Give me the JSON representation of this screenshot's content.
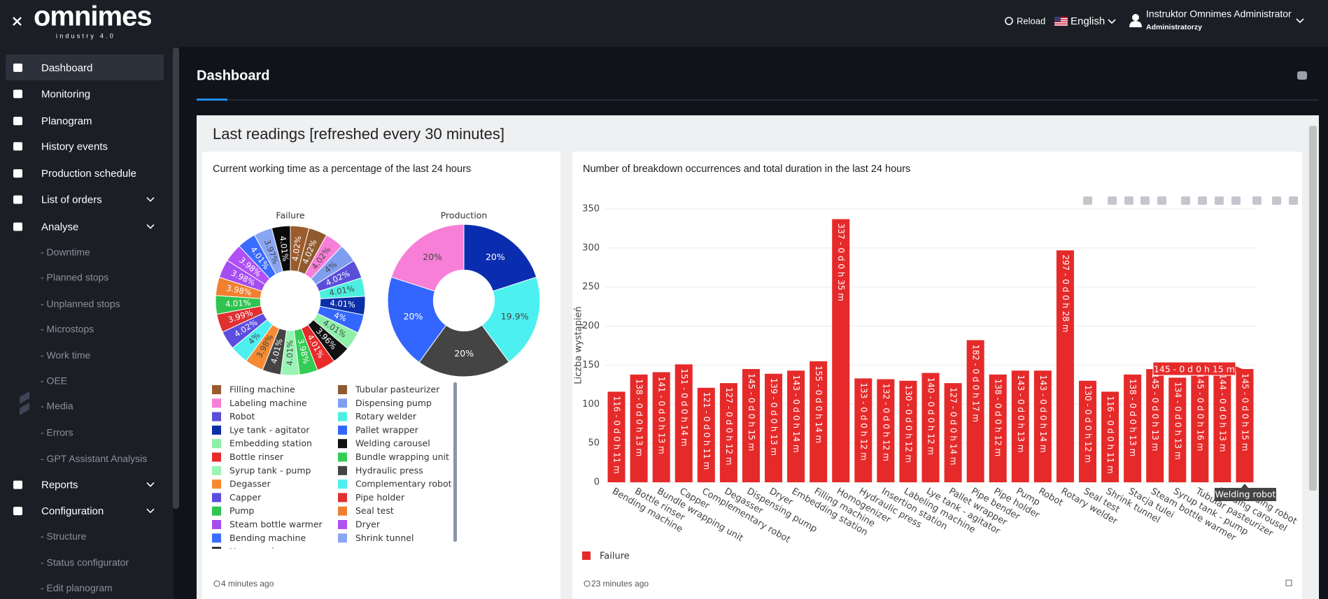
{
  "header": {
    "logo": "omnimes",
    "logo_tagline": "industry 4.0",
    "reload": "Reload",
    "language": "English",
    "user_name": "Instruktor Omnimes Administrator",
    "user_role": "Administratorzy"
  },
  "sidebar": [
    {
      "label": "Dashboard",
      "active": true
    },
    {
      "label": "Monitoring"
    },
    {
      "label": "Planogram"
    },
    {
      "label": "History events"
    },
    {
      "label": "Production schedule"
    },
    {
      "label": "List of orders",
      "expandable": true
    },
    {
      "label": "Analyse",
      "expandable": true
    },
    {
      "label": "- Downtime",
      "sub": true
    },
    {
      "label": "- Planned stops",
      "sub": true
    },
    {
      "label": "- Unplanned stops",
      "sub": true
    },
    {
      "label": "- Microstops",
      "sub": true
    },
    {
      "label": "- Work time",
      "sub": true
    },
    {
      "label": "- OEE",
      "sub": true
    },
    {
      "label": "- Media",
      "sub": true
    },
    {
      "label": "- Errors",
      "sub": true
    },
    {
      "label": "- GPT Assistant Analysis",
      "sub": true
    },
    {
      "label": "Reports",
      "expandable": true
    },
    {
      "label": "Configuration",
      "expandable": true
    },
    {
      "label": "- Structure",
      "sub": true
    },
    {
      "label": "- Status configurator",
      "sub": true
    },
    {
      "label": "- Edit planogram",
      "sub": true
    }
  ],
  "page_title": "Dashboard",
  "panel_title": "Last readings [refreshed every 30 minutes]",
  "cards": [
    {
      "title": "Current working time as a percentage of the last 24 hours",
      "footer": "4 minutes ago"
    },
    {
      "title": "Number of breakdown occurrences and total duration in the last 24 hours",
      "footer": "23 minutes ago"
    }
  ],
  "chart_data": [
    {
      "type": "pie",
      "title": "Failure",
      "labels": [
        "Filling machine",
        "Tubular pasteurizer",
        "Labeling machine",
        "Dispensing pump",
        "Robot",
        "Rotary welder",
        "Lye tank - agitator",
        "Pallet wrapper",
        "Embedding station",
        "Welding carousel",
        "Bottle rinser",
        "Bundle wrapping unit",
        "Syrup tank - pump",
        "Hydraulic press",
        "Degasser",
        "Complementary robot",
        "Capper",
        "Pipe holder",
        "Pump",
        "Seal test",
        "Steam bottle warmer",
        "Dryer",
        "Bending machine",
        "Shrink tunnel",
        "Homogenizer"
      ],
      "values": [
        4.02,
        4.02,
        4.02,
        4,
        4.02,
        4.01,
        4.01,
        4,
        4.01,
        3.96,
        4.01,
        3.98,
        4.01,
        4.01,
        3.98,
        4,
        4.02,
        3.99,
        4.01,
        3.98,
        3.98,
        3.98,
        4.01,
        3.97,
        4.01
      ],
      "value_labels": [
        "4.02%",
        "4.02%",
        "4.02%",
        "4%",
        "4.02%",
        "4.01%",
        "4.01%",
        "4%",
        "4.01%",
        "3.96%",
        "4.01%",
        "3.98%",
        "4.01%",
        "4.01%",
        "3.98%",
        "4%",
        "4.02%",
        "3.99%",
        "4.01%",
        "3.98%",
        "3.98%",
        "3.98%",
        "4.01%",
        "3.97%",
        "4.01%"
      ],
      "colors": [
        "#9c5b2c",
        "#8f5a2e",
        "#f77fd8",
        "#7f9ef0",
        "#5a4fd8",
        "#4df0e0",
        "#0b2fa8",
        "#3366ff",
        "#8ef0a8",
        "#111111",
        "#e82a2a",
        "#33cc55",
        "#9af5b4",
        "#444444",
        "#f58a33",
        "#4df0f0",
        "#5b4de0",
        "#e03030",
        "#2fc450",
        "#f08030",
        "#a64df0",
        "#b050f5",
        "#3a6cff",
        "#8aa5f2",
        "#0a0a0a"
      ]
    },
    {
      "type": "pie",
      "title": "Production",
      "values": [
        20,
        19.9,
        20,
        20,
        20
      ],
      "value_labels": [
        "20%",
        "19.9%",
        "20%",
        "20%",
        "20%"
      ],
      "colors": [
        "#0a2db0",
        "#4df0f0",
        "#444444",
        "#3366ff",
        "#f77fd8"
      ]
    },
    {
      "type": "bar",
      "y_label": "Liczba wystąpień",
      "categories": [
        "Bending machine",
        "Bottle rinser",
        "Bundle wrapping unit",
        "Capper",
        "Complementary robot",
        "Degasser",
        "Dispensing pump",
        "Dryer",
        "Embedding station",
        "Filling machine",
        "Homogenizer",
        "Hydraulic press",
        "Insertion station",
        "Labeling machine",
        "Lye tank - agitator",
        "Pallet wrapper",
        "Pipe bender",
        "Pipe holder",
        "Pump",
        "Robot",
        "Rotary welder",
        "Seal test",
        "Shrink tunnel",
        "Stacja tulei",
        "Steam bottle warmer",
        "Syrup tank - pump",
        "Tubular pasteurizer",
        "Welding carousel",
        "Welding robot"
      ],
      "series": [
        {
          "name": "Failure",
          "color": "#e62a2a",
          "values": [
            116,
            138,
            141,
            151,
            121,
            127,
            145,
            139,
            143,
            155,
            337,
            133,
            132,
            130,
            140,
            127,
            182,
            138,
            143,
            143,
            297,
            130,
            116,
            138,
            145,
            134,
            145,
            144,
            145
          ],
          "value_labels": [
            "116 - 0 d 0 h 11 m",
            "138 - 0 d 0 h 13 m",
            "141 - 0 d 0 h 13 m",
            "151 - 0 d 0 h 14 m",
            "121 - 0 d 0 h 11 m",
            "127 - 0 d 0 h 12 m",
            "145 - 0 d 0 h 15 m",
            "139 - 0 d 0 h 13 m",
            "143 - 0 d 0 h 14 m",
            "155 - 0 d 0 h 14 m",
            "337 - 0 d 0 h 35 m",
            "133 - 0 d 0 h 12 m",
            "132 - 0 d 0 h 12 m",
            "130 - 0 d 0 h 12 m",
            "140 - 0 d 0 h 12 m",
            "127 - 0 d 0 h 14 m",
            "182 - 0 d 0 h 17 m",
            "138 - 0 d 0 h 12 m",
            "143 - 0 d 0 h 13 m",
            "143 - 0 d 0 h 14 m",
            "297 - 0 d 0 h 28 m",
            "130 - 0 d 0 h 12 m",
            "116 - 0 d 0 h 11 m",
            "138 - 0 d 0 h 13 m",
            "145 - 0 d 0 h 13 m",
            "134 - 0 d 0 h 13 m",
            "145 - 0 d 0 h 16 m",
            "144 - 0 d 0 h 13 m",
            "145 - 0 d 0 h 15 m"
          ]
        }
      ],
      "ylim": [
        0,
        350
      ],
      "yticks": [
        0,
        50,
        100,
        150,
        200,
        250,
        300,
        350
      ],
      "grid": true,
      "hover_index": 28
    }
  ]
}
